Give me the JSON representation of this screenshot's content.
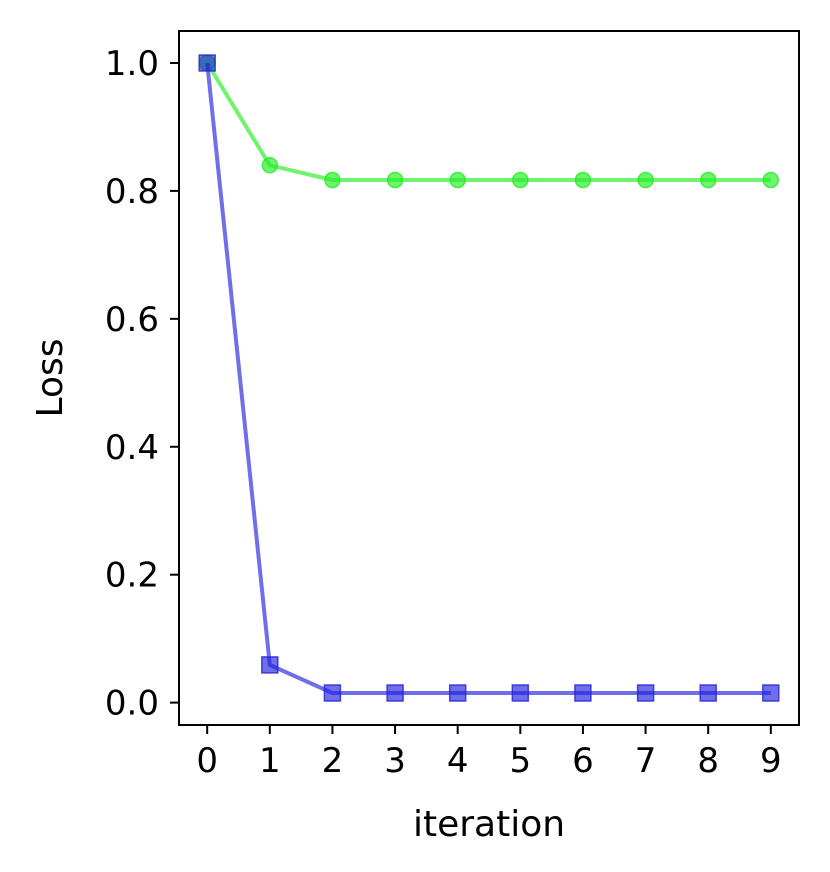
{
  "chart_data": {
    "type": "line",
    "title": "",
    "xlabel": "iteration",
    "ylabel": "Loss",
    "xlim": [
      -0.45,
      9.45
    ],
    "ylim": [
      -0.035,
      1.05
    ],
    "grid": false,
    "x": [
      0,
      1,
      2,
      3,
      4,
      5,
      6,
      7,
      8,
      9
    ],
    "xticks": [
      "0",
      "1",
      "2",
      "3",
      "4",
      "5",
      "6",
      "7",
      "8",
      "9"
    ],
    "yticks": [
      0.0,
      0.2,
      0.4,
      0.6,
      0.8,
      1.0
    ],
    "ytick_labels": [
      "0.0",
      "0.2",
      "0.4",
      "0.6",
      "0.8",
      "1.0"
    ],
    "series": [
      {
        "marker": "circle",
        "color": "#22ee22",
        "values": [
          1.0,
          0.84,
          0.817,
          0.817,
          0.817,
          0.817,
          0.817,
          0.817,
          0.817,
          0.817
        ]
      },
      {
        "marker": "square",
        "color": "#2222dd",
        "values": [
          1.0,
          0.059,
          0.015,
          0.015,
          0.015,
          0.015,
          0.015,
          0.015,
          0.015,
          0.015
        ]
      }
    ]
  }
}
